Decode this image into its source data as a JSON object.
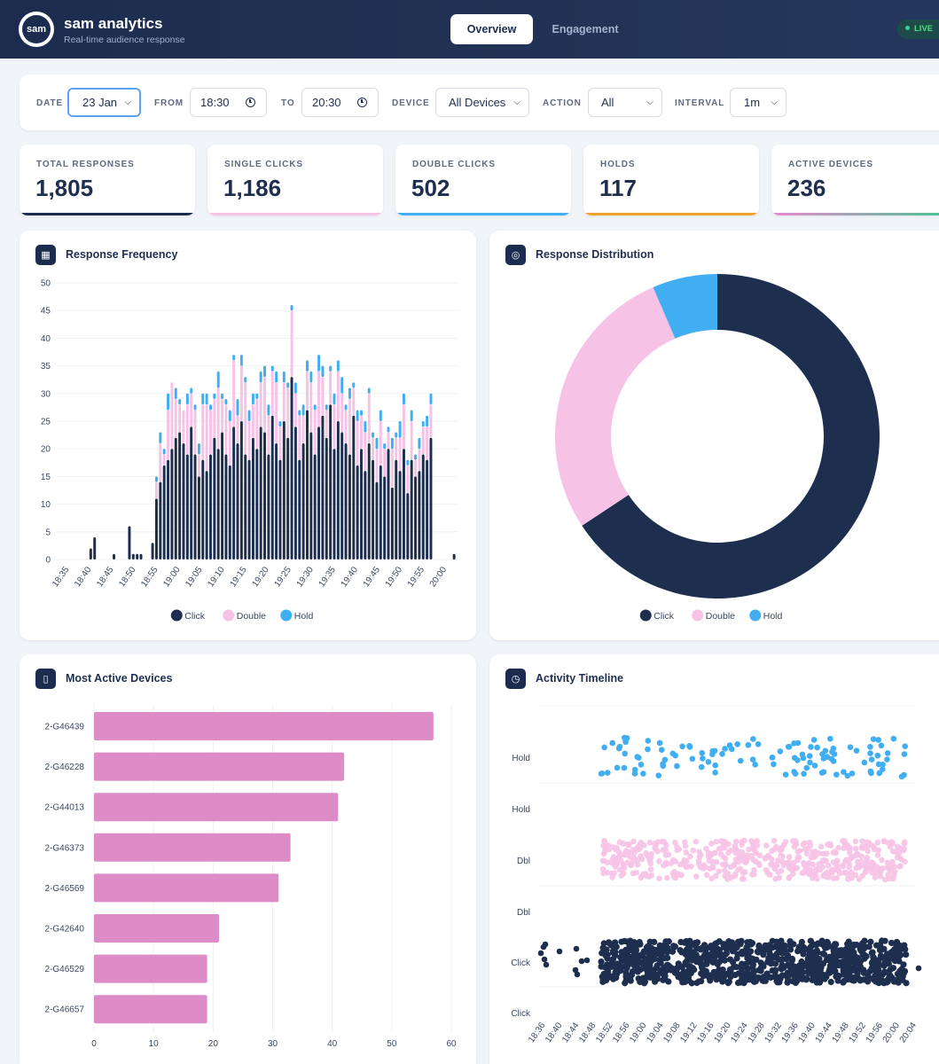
{
  "header": {
    "logo_text": "sam",
    "title": "sam analytics",
    "subtitle": "Real-time audience response",
    "tabs": [
      {
        "label": "Overview",
        "active": true
      },
      {
        "label": "Engagement",
        "active": false
      }
    ],
    "live_label": "LIVE"
  },
  "filters": {
    "date": {
      "label": "DATE",
      "value": "23 Jan"
    },
    "from": {
      "label": "FROM",
      "value": "18:30"
    },
    "to": {
      "label": "TO",
      "value": "20:30"
    },
    "device": {
      "label": "DEVICE",
      "value": "All Devices"
    },
    "action": {
      "label": "ACTION",
      "value": "All"
    },
    "interval": {
      "label": "INTERVAL",
      "value": "1m"
    }
  },
  "stats": [
    {
      "label": "TOTAL RESPONSES",
      "value": "1,805",
      "color": "#1e2e4f"
    },
    {
      "label": "SINGLE CLICKS",
      "value": "1,186",
      "color": "#f6c3e6"
    },
    {
      "label": "DOUBLE CLICKS",
      "value": "502",
      "color": "#40aef1"
    },
    {
      "label": "HOLDS",
      "value": "117",
      "color": "#f0a32c"
    },
    {
      "label": "ACTIVE DEVICES",
      "value": "236",
      "color": "#4bc292"
    }
  ],
  "colors": {
    "click": "#1e2e4f",
    "double": "#f6c3e6",
    "hold": "#40aef1",
    "device_bar": "#dd8cc8"
  },
  "cards": {
    "frequency": {
      "title": "Response Frequency",
      "icon": "bar-chart-icon"
    },
    "distribution": {
      "title": "Response Distribution",
      "icon": "target-icon"
    },
    "devices": {
      "title": "Most Active Devices",
      "icon": "device-icon"
    },
    "timeline": {
      "title": "Activity Timeline",
      "icon": "stopwatch-icon"
    }
  },
  "chart_data": [
    {
      "type": "bar",
      "stacked": true,
      "title": "Response Frequency",
      "x_ticks": [
        "18:35",
        "18:40",
        "18:45",
        "18:50",
        "18:55",
        "19:00",
        "19:05",
        "19:10",
        "19:15",
        "19:20",
        "19:25",
        "19:30",
        "19:35",
        "19:40",
        "19:45",
        "19:50",
        "19:55",
        "20:00"
      ],
      "ylim": [
        0,
        50
      ],
      "y_ticks": [
        0,
        5,
        10,
        15,
        20,
        25,
        30,
        35,
        40,
        45,
        50
      ],
      "series": [
        {
          "name": "Click",
          "values": [
            0,
            0,
            0,
            0,
            0,
            0,
            0,
            0,
            2,
            4,
            0,
            0,
            0,
            0,
            1,
            0,
            0,
            0,
            6,
            1,
            1,
            1,
            0,
            0,
            3,
            11,
            14,
            17,
            18,
            20,
            22,
            23,
            21,
            19,
            24,
            19,
            15,
            18,
            16,
            19,
            22,
            20,
            23,
            19,
            17,
            24,
            21,
            25,
            19,
            18,
            22,
            20,
            24,
            23,
            19,
            26,
            21,
            18,
            25,
            22,
            33,
            24,
            18,
            21,
            27,
            23,
            19,
            24,
            26,
            22,
            28,
            20,
            25,
            23,
            21,
            19,
            26,
            17,
            20,
            16,
            21,
            18,
            14,
            17,
            15,
            20,
            13,
            18,
            16,
            20,
            12,
            18,
            15,
            16,
            19,
            18,
            22,
            0,
            0,
            0,
            0,
            0,
            1
          ]
        },
        {
          "name": "Double",
          "values": [
            0,
            0,
            0,
            0,
            0,
            0,
            0,
            0,
            0,
            0,
            0,
            0,
            0,
            0,
            0,
            0,
            0,
            0,
            0,
            0,
            0,
            0,
            0,
            0,
            0,
            3,
            7,
            2,
            9,
            12,
            7,
            5,
            6,
            9,
            6,
            8,
            4,
            10,
            12,
            8,
            7,
            11,
            6,
            9,
            8,
            12,
            5,
            10,
            13,
            7,
            6,
            9,
            8,
            10,
            7,
            8,
            11,
            6,
            7,
            9,
            12,
            6,
            8,
            5,
            7,
            9,
            8,
            10,
            7,
            5,
            6,
            8,
            9,
            7,
            6,
            10,
            5,
            8,
            6,
            7,
            9,
            4,
            6,
            8,
            5,
            3,
            7,
            4,
            6,
            8,
            5,
            7,
            3,
            4,
            5,
            6,
            6,
            0,
            0,
            0,
            0,
            0,
            0
          ]
        },
        {
          "name": "Hold",
          "values": [
            0,
            0,
            0,
            0,
            0,
            0,
            0,
            0,
            0,
            0,
            0,
            0,
            0,
            0,
            0,
            0,
            0,
            0,
            0,
            0,
            0,
            0,
            0,
            0,
            0,
            1,
            2,
            1,
            3,
            0,
            2,
            1,
            0,
            2,
            1,
            1,
            2,
            2,
            2,
            1,
            1,
            3,
            1,
            1,
            2,
            1,
            3,
            2,
            1,
            2,
            2,
            1,
            2,
            2,
            2,
            1,
            2,
            1,
            2,
            1,
            1,
            2,
            1,
            2,
            2,
            2,
            1,
            3,
            2,
            1,
            1,
            2,
            2,
            3,
            1,
            2,
            1,
            2,
            1,
            2,
            1,
            1,
            2,
            2,
            1,
            1,
            2,
            1,
            3,
            2,
            1,
            2,
            1,
            2,
            1,
            2,
            2,
            0,
            0,
            0,
            0,
            0,
            0
          ]
        }
      ],
      "legend": [
        "Click",
        "Double",
        "Hold"
      ]
    },
    {
      "type": "pie",
      "title": "Response Distribution",
      "categories": [
        "Click",
        "Double",
        "Hold"
      ],
      "values": [
        1186,
        502,
        117
      ],
      "legend": [
        "Click",
        "Double",
        "Hold"
      ]
    },
    {
      "type": "bar",
      "orientation": "horizontal",
      "title": "Most Active Devices",
      "categories": [
        "2-G46439",
        "2-G46228",
        "2-G44013",
        "2-G46373",
        "2-G46569",
        "2-G42640",
        "2-G46529",
        "2-G46657"
      ],
      "values": [
        57,
        42,
        41,
        33,
        31,
        21,
        19,
        19
      ],
      "xlim": [
        0,
        60
      ],
      "x_ticks": [
        0,
        10,
        20,
        30,
        40,
        50,
        60
      ]
    },
    {
      "type": "scatter",
      "title": "Activity Timeline",
      "rows": [
        "Hold",
        "Hold",
        "Dbl",
        "Dbl",
        "Click",
        "Click"
      ],
      "x_ticks": [
        "18:36",
        "18:40",
        "18:44",
        "18:48",
        "18:52",
        "18:56",
        "19:00",
        "19:04",
        "19:08",
        "19:12",
        "19:16",
        "19:20",
        "19:24",
        "19:28",
        "19:32",
        "19:36",
        "19:40",
        "19:44",
        "19:48",
        "19:52",
        "19:56",
        "20:00",
        "20:04"
      ],
      "series": [
        {
          "name": "Hold",
          "count": 117
        },
        {
          "name": "Double",
          "count": 502
        },
        {
          "name": "Click",
          "count": 1186
        }
      ]
    }
  ]
}
